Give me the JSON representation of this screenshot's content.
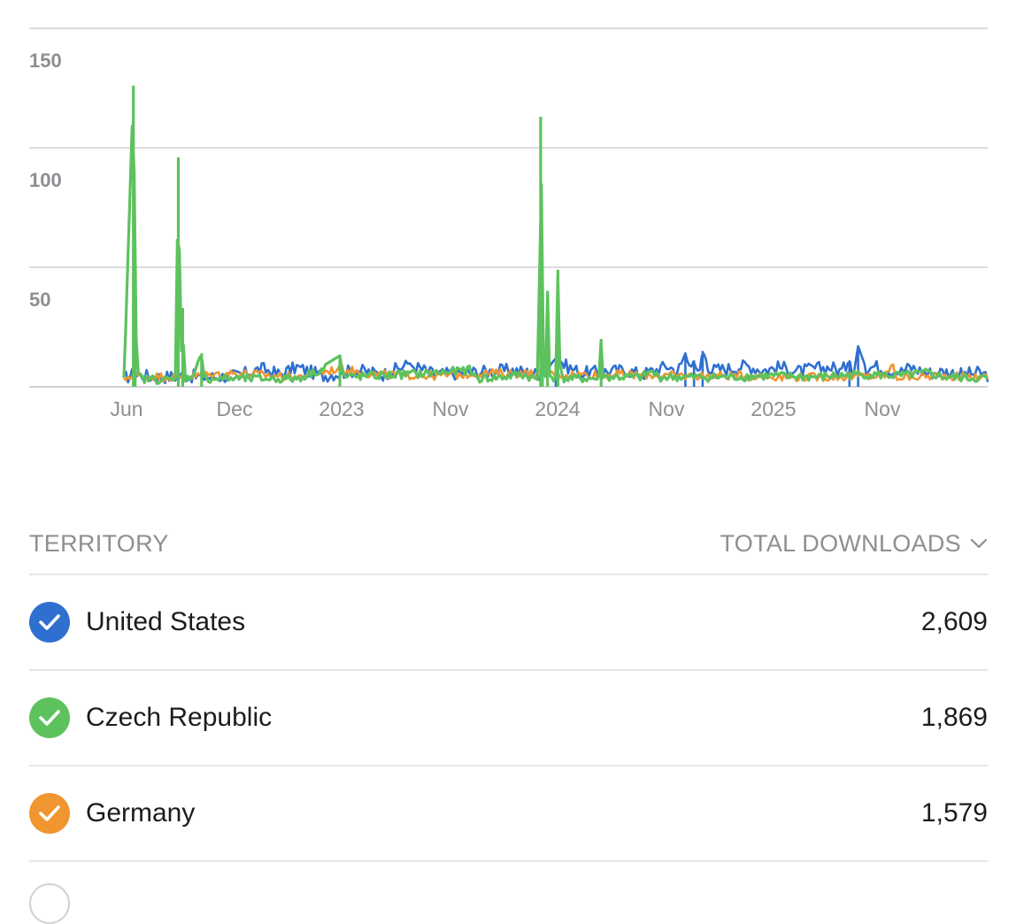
{
  "chart_data": {
    "type": "line",
    "title": "",
    "xlabel": "",
    "ylabel": "",
    "ylim": [
      0,
      150
    ],
    "yticks": [
      50,
      100,
      150
    ],
    "grid": true,
    "x_tick_labels": [
      "Jun",
      "Dec",
      "2023",
      "Nov",
      "2024",
      "Nov",
      "2025",
      "Nov"
    ],
    "series": [
      {
        "color": "#2f6fd0",
        "baseline": 1.5,
        "points": [
          [
            0.0,
            0
          ],
          [
            0.01,
            3
          ],
          [
            0.04,
            1
          ],
          [
            0.07,
            2
          ],
          [
            0.1,
            1
          ],
          [
            0.13,
            2
          ],
          [
            0.16,
            7
          ],
          [
            0.18,
            3
          ],
          [
            0.2,
            8
          ],
          [
            0.23,
            2
          ],
          [
            0.25,
            4
          ],
          [
            0.27,
            6
          ],
          [
            0.3,
            3
          ],
          [
            0.33,
            10
          ],
          [
            0.36,
            3
          ],
          [
            0.39,
            4
          ],
          [
            0.42,
            5
          ],
          [
            0.45,
            6
          ],
          [
            0.48,
            3
          ],
          [
            0.5,
            12
          ],
          [
            0.53,
            4
          ],
          [
            0.56,
            5
          ],
          [
            0.58,
            6
          ],
          [
            0.6,
            3
          ],
          [
            0.62,
            7
          ],
          [
            0.63,
            9
          ],
          [
            0.64,
            5
          ],
          [
            0.65,
            14
          ],
          [
            0.655,
            7
          ],
          [
            0.66,
            11
          ],
          [
            0.665,
            4
          ],
          [
            0.67,
            15
          ],
          [
            0.68,
            6
          ],
          [
            0.7,
            7
          ],
          [
            0.72,
            9
          ],
          [
            0.74,
            6
          ],
          [
            0.76,
            8
          ],
          [
            0.78,
            5
          ],
          [
            0.8,
            7
          ],
          [
            0.82,
            8
          ],
          [
            0.83,
            5
          ],
          [
            0.84,
            11
          ],
          [
            0.845,
            6
          ],
          [
            0.85,
            17
          ],
          [
            0.86,
            7
          ],
          [
            0.87,
            9
          ],
          [
            0.88,
            6
          ],
          [
            0.9,
            5
          ],
          [
            0.91,
            8
          ],
          [
            0.92,
            6
          ],
          [
            0.93,
            4
          ],
          [
            0.95,
            5
          ],
          [
            0.97,
            3
          ],
          [
            0.99,
            4
          ],
          [
            1.0,
            2
          ]
        ]
      },
      {
        "color": "#f0952f",
        "baseline": 1,
        "points": [
          [
            0.0,
            0
          ],
          [
            0.005,
            4
          ],
          [
            0.06,
            3
          ],
          [
            0.13,
            6
          ],
          [
            0.2,
            3
          ],
          [
            0.25,
            9
          ],
          [
            0.29,
            5
          ],
          [
            0.36,
            4
          ],
          [
            0.43,
            6
          ],
          [
            0.5,
            5
          ],
          [
            0.57,
            5
          ],
          [
            0.65,
            4
          ],
          [
            0.72,
            4
          ],
          [
            0.8,
            3
          ],
          [
            0.88,
            4
          ],
          [
            0.89,
            10
          ],
          [
            0.895,
            3
          ],
          [
            0.95,
            4
          ],
          [
            1.0,
            3
          ]
        ]
      },
      {
        "color": "#5dc25d",
        "baseline": 1,
        "points": [
          [
            0.0,
            0
          ],
          [
            0.011,
            126
          ],
          [
            0.013,
            47
          ],
          [
            0.015,
            5
          ],
          [
            0.02,
            2
          ],
          [
            0.06,
            1
          ],
          [
            0.063,
            96
          ],
          [
            0.066,
            6
          ],
          [
            0.068,
            33
          ],
          [
            0.07,
            3
          ],
          [
            0.075,
            2
          ],
          [
            0.09,
            14
          ],
          [
            0.092,
            2
          ],
          [
            0.2,
            2
          ],
          [
            0.25,
            13
          ],
          [
            0.255,
            3
          ],
          [
            0.36,
            6
          ],
          [
            0.4,
            8
          ],
          [
            0.41,
            2
          ],
          [
            0.44,
            3
          ],
          [
            0.46,
            5
          ],
          [
            0.475,
            2
          ],
          [
            0.48,
            1
          ],
          [
            0.4825,
            113
          ],
          [
            0.4845,
            45
          ],
          [
            0.486,
            3
          ],
          [
            0.488,
            2
          ],
          [
            0.4905,
            40
          ],
          [
            0.493,
            5
          ],
          [
            0.496,
            3
          ],
          [
            0.5,
            2
          ],
          [
            0.5025,
            49
          ],
          [
            0.505,
            6
          ],
          [
            0.507,
            3
          ],
          [
            0.51,
            2
          ],
          [
            0.55,
            2
          ],
          [
            0.5525,
            20
          ],
          [
            0.555,
            3
          ],
          [
            0.6,
            3
          ],
          [
            0.61,
            7
          ],
          [
            0.62,
            3
          ],
          [
            0.7,
            3
          ],
          [
            0.75,
            4
          ],
          [
            0.8,
            3
          ],
          [
            0.85,
            5
          ],
          [
            0.9,
            4
          ],
          [
            0.93,
            6
          ],
          [
            0.95,
            3
          ],
          [
            1.0,
            2
          ]
        ]
      }
    ]
  },
  "table": {
    "header_territory": "TERRITORY",
    "header_downloads": "TOTAL DOWNLOADS",
    "rows": [
      {
        "name": "United States",
        "value": "2,609",
        "color": "#2f6fd0"
      },
      {
        "name": "Czech Republic",
        "value": "1,869",
        "color": "#5dc25d"
      },
      {
        "name": "Germany",
        "value": "1,579",
        "color": "#f0952f"
      }
    ]
  }
}
